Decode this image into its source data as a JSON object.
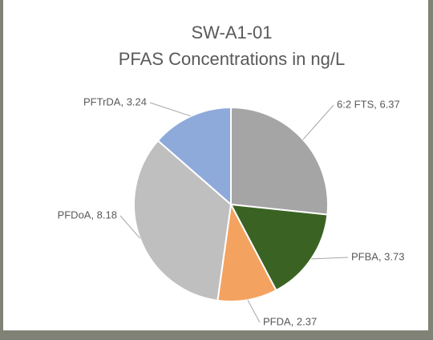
{
  "chart_data": {
    "type": "pie",
    "title": "SW-A1-01",
    "subtitle": "PFAS Concentrations in ng/L",
    "categories": [
      "6:2 FTS",
      "PFBA",
      "PFDA",
      "PFDoA",
      "PFTrDA"
    ],
    "values": [
      6.37,
      3.73,
      2.37,
      8.18,
      3.24
    ],
    "value_labels": [
      "6:2 FTS, 6.37",
      "PFBA, 3.73",
      "PFDA, 2.37",
      "PFDoA, 8.18",
      "PFTrDA, 3.24"
    ],
    "colors": [
      "#a5a5a5",
      "#3a6323",
      "#f4a260",
      "#bfbfbf",
      "#8eaadb"
    ]
  }
}
